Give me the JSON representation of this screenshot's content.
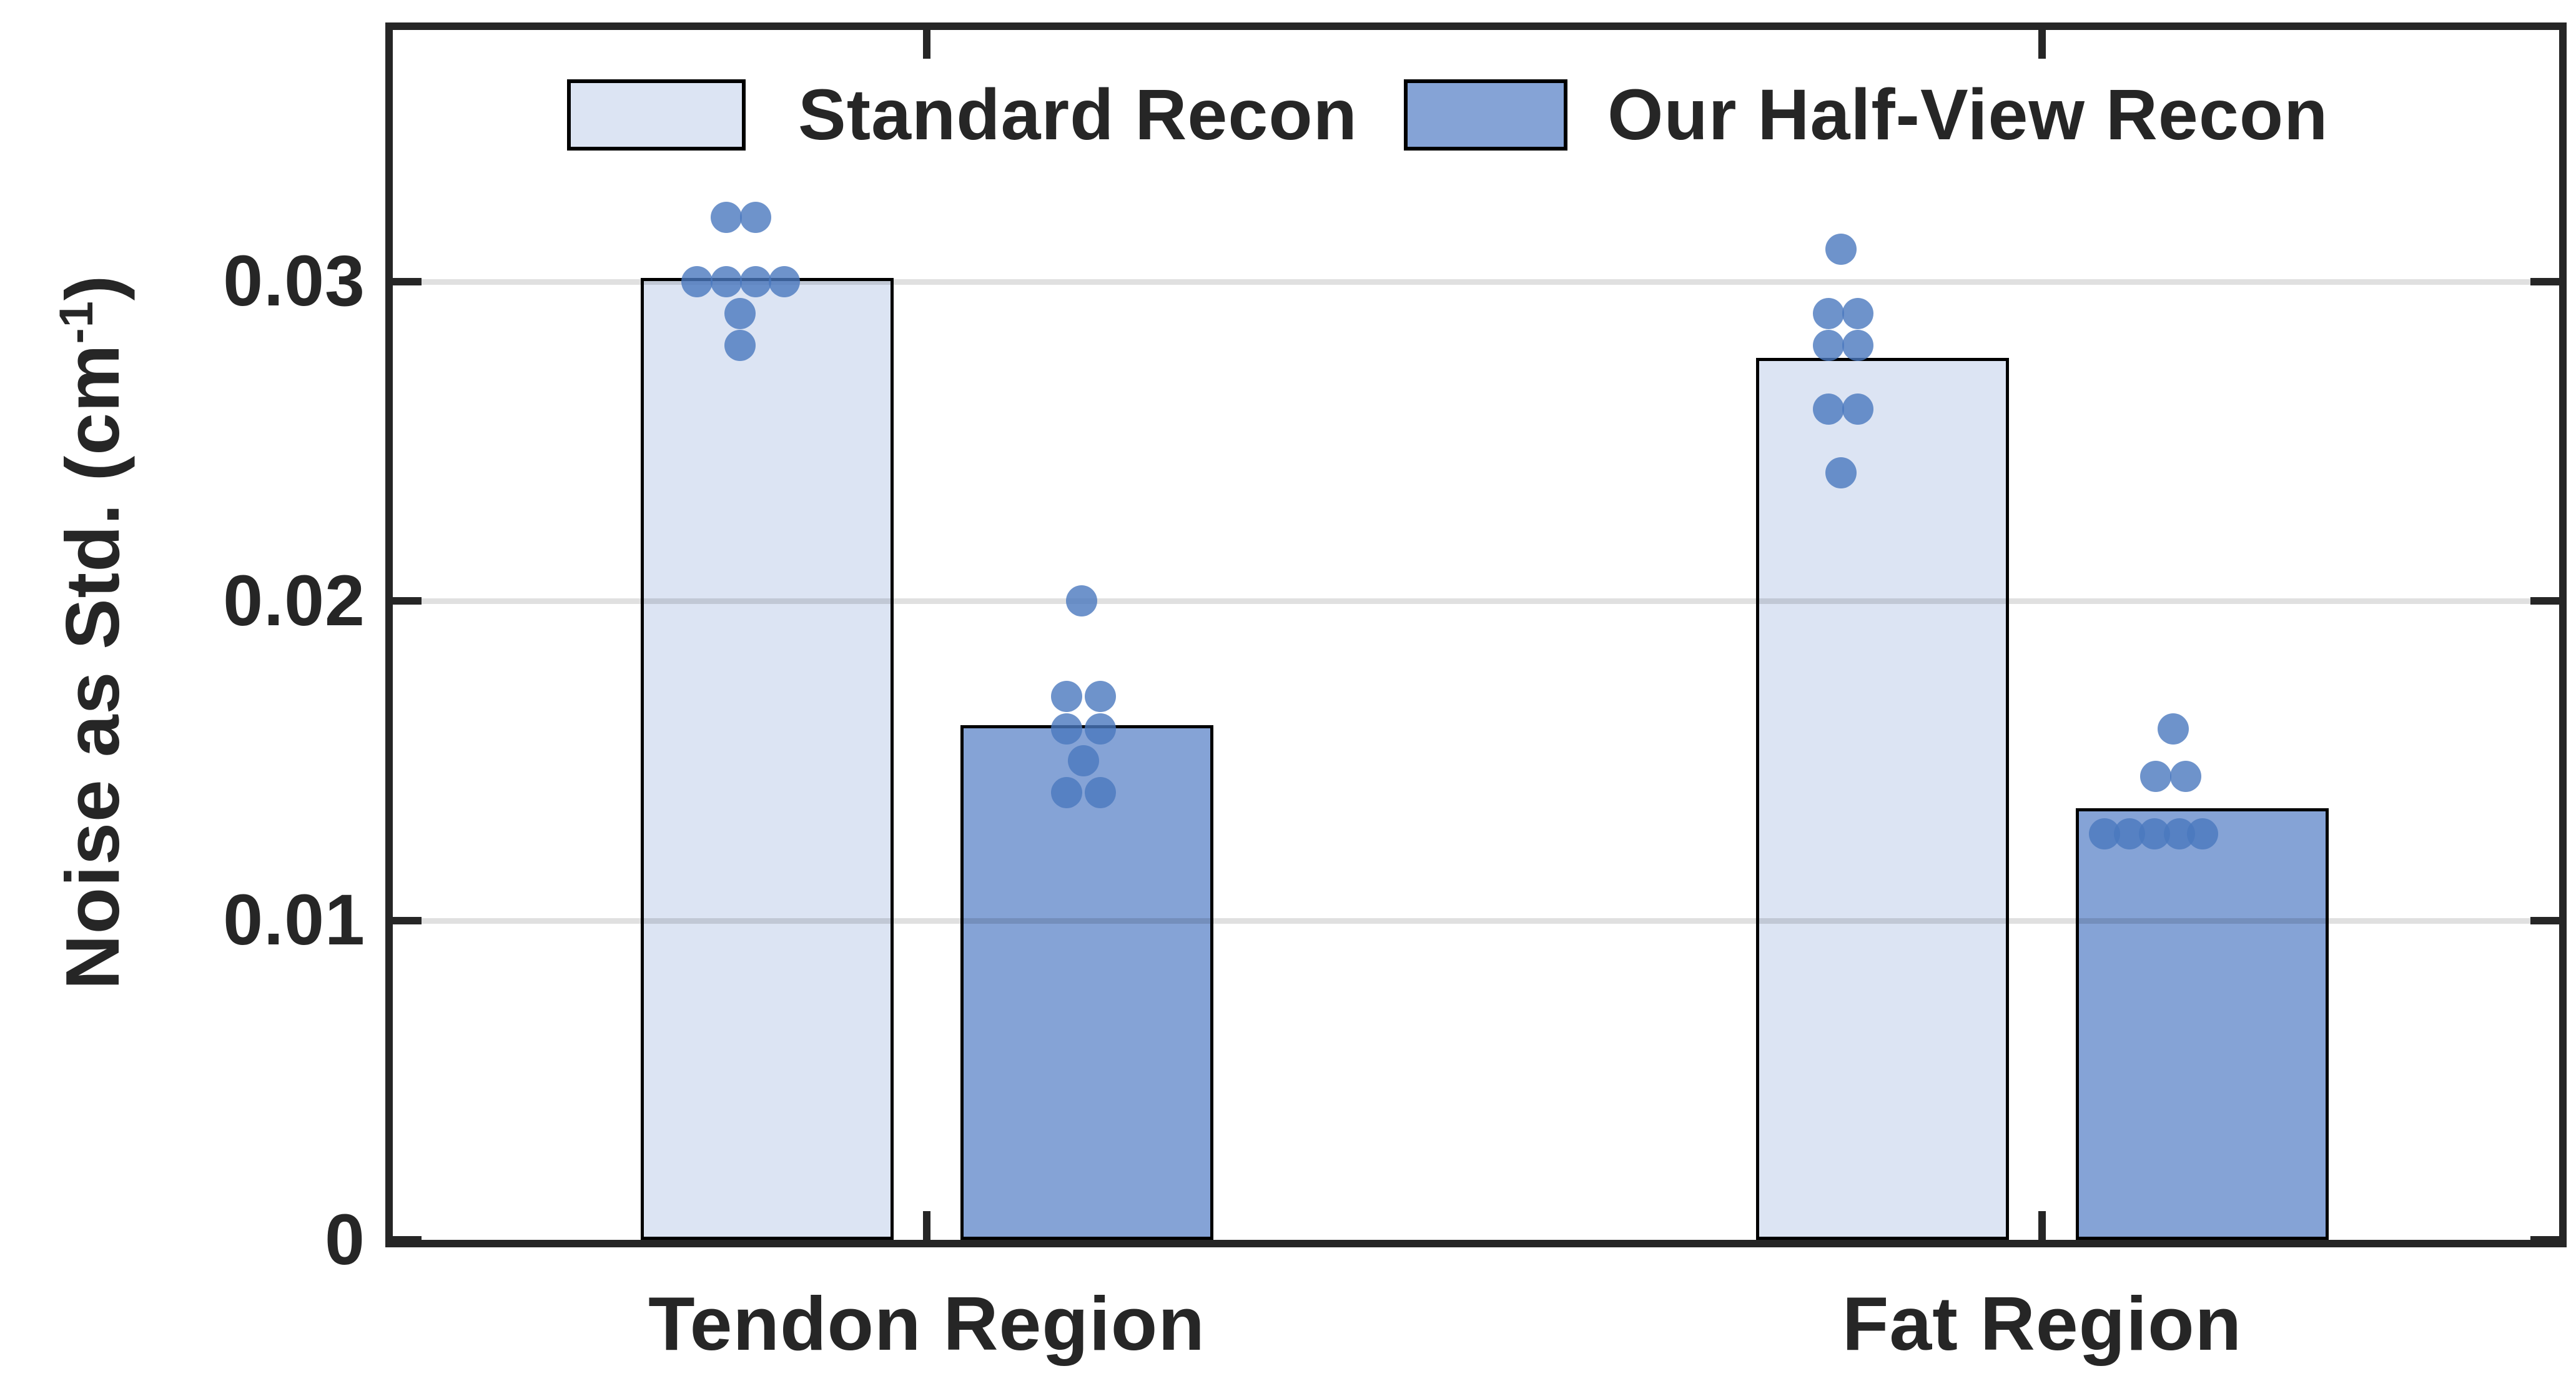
{
  "figure": {
    "background": "#FFFFFF",
    "axes_color": "#262626",
    "grid_color_rgba": "rgba(0,0,0,0.12)"
  },
  "chart_data": {
    "type": "bar",
    "title": "",
    "xlabel": "",
    "ylabel": "Noise as Std. (cm⁻¹)",
    "ylabel_parts": {
      "pre": "Noise as Std. (cm",
      "sup": "-1",
      "post": ")"
    },
    "categories": [
      "Tendon Region",
      "Fat Region"
    ],
    "ylim": [
      0,
      0.0379
    ],
    "yticks": [
      0,
      0.01,
      0.02,
      0.03
    ],
    "ytick_labels": [
      "0",
      "0.01",
      "0.02",
      "0.03"
    ],
    "grid": "horizontal gridlines at 0.01, 0.02, 0.03; shown through bars",
    "legend_position": "top-center inside plot, horizontal row",
    "point_color": "#4A78BE",
    "point_opacity": 0.8,
    "series": [
      {
        "name": "Standard Recon",
        "fill": "#DCE4F3",
        "edge": "#000000",
        "values": [
          0.0301,
          0.0276
        ],
        "points": [
          [
            {
              "v": 0.032,
              "dx": -65
            },
            {
              "v": 0.032,
              "dx": -18
            },
            {
              "v": 0.03,
              "dx": -112
            },
            {
              "v": 0.03,
              "dx": -65
            },
            {
              "v": 0.03,
              "dx": -18
            },
            {
              "v": 0.03,
              "dx": 28
            },
            {
              "v": 0.029,
              "dx": -43
            },
            {
              "v": 0.028,
              "dx": -43
            }
          ],
          [
            {
              "v": 0.031,
              "dx": -66
            },
            {
              "v": 0.029,
              "dx": -86
            },
            {
              "v": 0.029,
              "dx": -39
            },
            {
              "v": 0.028,
              "dx": -86
            },
            {
              "v": 0.028,
              "dx": -39
            },
            {
              "v": 0.026,
              "dx": -86
            },
            {
              "v": 0.026,
              "dx": -39
            },
            {
              "v": 0.024,
              "dx": -66
            }
          ]
        ]
      },
      {
        "name": "Our Half-View Recon",
        "fill": "#85A3D6",
        "edge": "#000000",
        "values": [
          0.0161,
          0.0135
        ],
        "points": [
          [
            {
              "v": 0.02,
              "dx": -8
            },
            {
              "v": 0.017,
              "dx": -32
            },
            {
              "v": 0.017,
              "dx": 22
            },
            {
              "v": 0.016,
              "dx": -32
            },
            {
              "v": 0.016,
              "dx": 22
            },
            {
              "v": 0.015,
              "dx": -5
            },
            {
              "v": 0.014,
              "dx": -32
            },
            {
              "v": 0.014,
              "dx": 22
            }
          ],
          [
            {
              "v": 0.016,
              "dx": -46
            },
            {
              "v": 0.0145,
              "dx": -74
            },
            {
              "v": 0.0145,
              "dx": -26
            },
            {
              "v": 0.0127,
              "dx": -156
            },
            {
              "v": 0.0127,
              "dx": -116
            },
            {
              "v": 0.0127,
              "dx": -76
            },
            {
              "v": 0.0127,
              "dx": -36
            },
            {
              "v": 0.0127,
              "dx": 1
            }
          ]
        ]
      }
    ]
  }
}
